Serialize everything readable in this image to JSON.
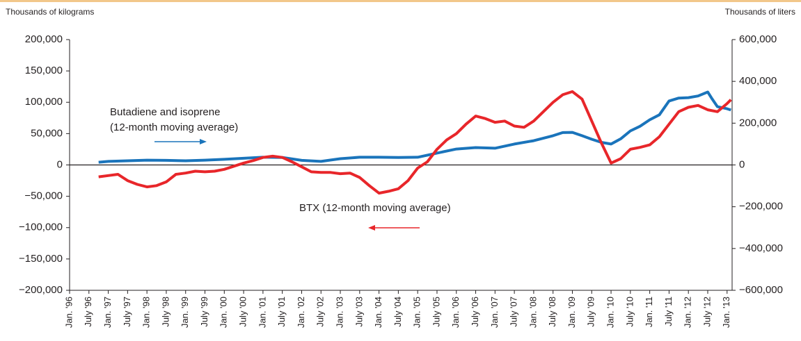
{
  "chart_data": {
    "type": "line",
    "y_label": "Thousands of kilograms",
    "y2_label": "Thousands of liters",
    "annotations": [
      "Butadiene and isoprene",
      "(12-month moving average)",
      "BTX (12-month moving average)"
    ],
    "xlim": [
      1996,
      2013.13
    ],
    "xticks": [
      {
        "value": 1996.0,
        "label": "Jan. '96"
      },
      {
        "value": 1996.5,
        "label": "July '96"
      },
      {
        "value": 1997.0,
        "label": "Jan. '97"
      },
      {
        "value": 1997.5,
        "label": "July '97"
      },
      {
        "value": 1998.0,
        "label": "Jan. '98"
      },
      {
        "value": 1998.5,
        "label": "July '98"
      },
      {
        "value": 1999.0,
        "label": "Jan. '99"
      },
      {
        "value": 1999.5,
        "label": "July '99"
      },
      {
        "value": 2000.0,
        "label": "Jan. '00"
      },
      {
        "value": 2000.5,
        "label": "July '00"
      },
      {
        "value": 2001.0,
        "label": "Jan. '01"
      },
      {
        "value": 2001.5,
        "label": "July '01"
      },
      {
        "value": 2002.0,
        "label": "Jan. '02"
      },
      {
        "value": 2002.5,
        "label": "July '02"
      },
      {
        "value": 2003.0,
        "label": "Jan. '03"
      },
      {
        "value": 2003.5,
        "label": "July '03"
      },
      {
        "value": 2004.0,
        "label": "Jan. '04"
      },
      {
        "value": 2004.5,
        "label": "July '04"
      },
      {
        "value": 2005.0,
        "label": "Jan. '05"
      },
      {
        "value": 2005.5,
        "label": "July '05"
      },
      {
        "value": 2006.0,
        "label": "Jan. '06"
      },
      {
        "value": 2006.5,
        "label": "July '06"
      },
      {
        "value": 2007.0,
        "label": "Jan. '07"
      },
      {
        "value": 2007.5,
        "label": "July '07"
      },
      {
        "value": 2008.0,
        "label": "Jan. '08"
      },
      {
        "value": 2008.5,
        "label": "July '08"
      },
      {
        "value": 2009.0,
        "label": "Jan. '09"
      },
      {
        "value": 2009.5,
        "label": "July '09"
      },
      {
        "value": 2010.0,
        "label": "Jan. '10"
      },
      {
        "value": 2010.5,
        "label": "July '10"
      },
      {
        "value": 2011.0,
        "label": "Jan. '11"
      },
      {
        "value": 2011.5,
        "label": "July '11"
      },
      {
        "value": 2012.0,
        "label": "Jan. '12"
      },
      {
        "value": 2012.5,
        "label": "July '12"
      },
      {
        "value": 2013.0,
        "label": "Jan. '13"
      }
    ],
    "ylim": [
      -200000,
      200000
    ],
    "yticks": [
      {
        "value": -200000,
        "label": "−200,000"
      },
      {
        "value": -150000,
        "label": "−150,000"
      },
      {
        "value": -100000,
        "label": "−100,000"
      },
      {
        "value": -50000,
        "label": "−50,000"
      },
      0,
      {
        "value": 50000,
        "label": "50,000"
      },
      {
        "value": 100000,
        "label": "100,000"
      },
      {
        "value": 150000,
        "label": "150,000"
      },
      {
        "value": 200000,
        "label": "200,000"
      }
    ],
    "y2lim": [
      -600000,
      600000
    ],
    "y2ticks": [
      {
        "value": -600000,
        "label": "−600,000"
      },
      {
        "value": -400000,
        "label": "−400,000"
      },
      {
        "value": -200000,
        "label": "−200,000"
      },
      0,
      {
        "value": 200000,
        "label": "200,000"
      },
      {
        "value": 400000,
        "label": "400,000"
      },
      {
        "value": 600000,
        "label": "600,000"
      }
    ],
    "series": [
      {
        "color": "#1a74bb",
        "axis": "y2",
        "x": [
          1996.75,
          1997.0,
          1997.5,
          1998.0,
          1998.5,
          1999.0,
          1999.5,
          2000.0,
          2000.5,
          2001.0,
          2001.5,
          2002.0,
          2002.5,
          2003.0,
          2003.5,
          2004.0,
          2004.5,
          2005.0,
          2005.5,
          2006.0,
          2006.5,
          2007.0,
          2007.5,
          2008.0,
          2008.5,
          2008.75,
          2009.0,
          2009.25,
          2009.5,
          2009.75,
          2010.0,
          2010.25,
          2010.5,
          2010.75,
          2011.0,
          2011.25,
          2011.5,
          2011.75,
          2012.0,
          2012.25,
          2012.5,
          2012.6,
          2012.75,
          2013.0,
          2013.1
        ],
        "values": [
          13000,
          17000,
          20000,
          23000,
          22000,
          20000,
          23000,
          27000,
          32000,
          37000,
          36000,
          22000,
          17000,
          30000,
          37000,
          37000,
          36000,
          37000,
          57000,
          76000,
          83000,
          80000,
          100000,
          116000,
          140000,
          155000,
          156000,
          140000,
          123000,
          108000,
          100000,
          125000,
          163000,
          185000,
          216000,
          240000,
          306000,
          320000,
          322000,
          330000,
          349000,
          320000,
          279000,
          269000,
          263000
        ]
      },
      {
        "color": "#e8262a",
        "axis": "y",
        "x": [
          1996.75,
          1997.0,
          1997.25,
          1997.5,
          1997.75,
          1998.0,
          1998.25,
          1998.5,
          1998.75,
          1999.0,
          1999.25,
          1999.5,
          1999.75,
          2000.0,
          2000.25,
          2000.5,
          2000.75,
          2001.0,
          2001.25,
          2001.5,
          2001.75,
          2002.0,
          2002.25,
          2002.5,
          2002.75,
          2003.0,
          2003.25,
          2003.5,
          2003.75,
          2004.0,
          2004.25,
          2004.5,
          2004.75,
          2005.0,
          2005.25,
          2005.5,
          2005.75,
          2006.0,
          2006.25,
          2006.5,
          2006.75,
          2007.0,
          2007.25,
          2007.5,
          2007.75,
          2008.0,
          2008.25,
          2008.5,
          2008.75,
          2009.0,
          2009.25,
          2009.5,
          2009.75,
          2010.0,
          2010.25,
          2010.5,
          2010.75,
          2011.0,
          2011.25,
          2011.5,
          2011.75,
          2012.0,
          2012.25,
          2012.5,
          2012.75,
          2013.0,
          2013.1
        ],
        "values": [
          -19000,
          -17000,
          -15000,
          -25000,
          -31000,
          -35000,
          -33000,
          -27000,
          -15000,
          -13000,
          -10000,
          -11000,
          -10000,
          -7000,
          -2000,
          3000,
          7000,
          12000,
          14000,
          12000,
          5000,
          -3000,
          -11000,
          -12000,
          -12000,
          -14000,
          -13000,
          -20000,
          -33000,
          -45000,
          -42000,
          -38000,
          -25000,
          -5000,
          5000,
          25000,
          40000,
          50000,
          65000,
          78000,
          74000,
          68000,
          70000,
          62000,
          60000,
          70000,
          85000,
          100000,
          112000,
          117000,
          105000,
          70000,
          35000,
          3000,
          10000,
          25000,
          28000,
          32000,
          45000,
          65000,
          85000,
          92000,
          95000,
          88000,
          85000,
          98000,
          104000
        ]
      }
    ]
  }
}
